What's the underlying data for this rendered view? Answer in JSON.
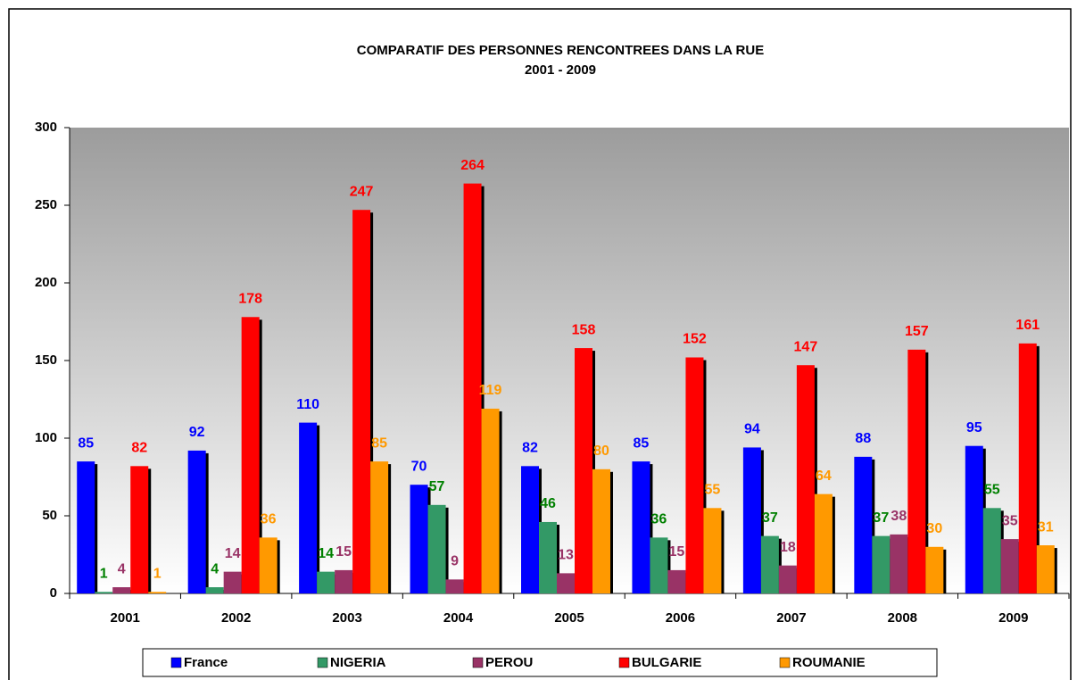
{
  "chart_data": {
    "type": "bar",
    "title": "COMPARATIF DES PERSONNES RENCONTREES DANS LA RUE",
    "subtitle": "2001 - 2009",
    "categories": [
      "2001",
      "2002",
      "2003",
      "2004",
      "2005",
      "2006",
      "2007",
      "2008",
      "2009"
    ],
    "series": [
      {
        "name": "France",
        "color": "#0000ff",
        "label_color": "#0000ff",
        "values": [
          85,
          92,
          110,
          70,
          82,
          85,
          94,
          88,
          95
        ]
      },
      {
        "name": "NIGERIA",
        "color": "#339966",
        "label_color": "#008000",
        "values": [
          1,
          4,
          14,
          57,
          46,
          36,
          37,
          37,
          55
        ]
      },
      {
        "name": "PEROU",
        "color": "#993366",
        "label_color": "#993366",
        "values": [
          4,
          14,
          15,
          9,
          13,
          15,
          18,
          38,
          35
        ]
      },
      {
        "name": "BULGARIE",
        "color": "#ff0000",
        "label_color": "#ff0000",
        "values": [
          82,
          178,
          247,
          264,
          158,
          152,
          147,
          157,
          161
        ]
      },
      {
        "name": "ROUMANIE",
        "color": "#ff9900",
        "label_color": "#ff9900",
        "values": [
          1,
          36,
          85,
          119,
          80,
          55,
          64,
          30,
          31
        ]
      }
    ],
    "ylim": [
      0,
      300
    ],
    "yticks": [
      0,
      50,
      100,
      150,
      200,
      250,
      300
    ],
    "legend": "bottom"
  }
}
